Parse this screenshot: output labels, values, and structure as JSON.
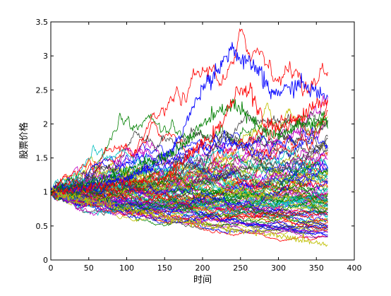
{
  "chart_data": {
    "type": "line",
    "title": "",
    "xlabel": "时间",
    "ylabel": "股票价格",
    "xlim": [
      0,
      400
    ],
    "ylim": [
      0,
      3.5
    ],
    "xticks": [
      0,
      50,
      100,
      150,
      200,
      250,
      300,
      350,
      400
    ],
    "yticks": [
      0,
      0.5,
      1,
      1.5,
      2,
      2.5,
      3,
      3.5
    ],
    "ytick_labels": [
      "0",
      "0.5",
      "1",
      "1.5",
      "2",
      "2.5",
      "3",
      "3.5"
    ],
    "grid": false,
    "legend": "none",
    "series_count": 100,
    "x": {
      "start": 0,
      "end": 365,
      "step": 1
    },
    "series_colors": [
      "#0000ff",
      "#008000",
      "#ff0000",
      "#00bfbf",
      "#bf00bf",
      "#bfbf00",
      "#404040"
    ],
    "highlighted_series": [
      {
        "color": "#0000ff",
        "points": [
          [
            0,
            1.0
          ],
          [
            30,
            1.05
          ],
          [
            60,
            1.1
          ],
          [
            100,
            1.2
          ],
          [
            130,
            1.35
          ],
          [
            160,
            1.6
          ],
          [
            180,
            2.05
          ],
          [
            200,
            2.55
          ],
          [
            220,
            2.8
          ],
          [
            240,
            3.15
          ],
          [
            250,
            2.9
          ],
          [
            270,
            2.85
          ],
          [
            290,
            2.45
          ],
          [
            310,
            2.5
          ],
          [
            330,
            2.6
          ],
          [
            350,
            2.45
          ],
          [
            365,
            2.4
          ]
        ]
      },
      {
        "color": "#008000",
        "points": [
          [
            0,
            1.0
          ],
          [
            40,
            1.1
          ],
          [
            80,
            1.25
          ],
          [
            120,
            1.4
          ],
          [
            150,
            1.5
          ],
          [
            180,
            1.75
          ],
          [
            200,
            2.0
          ],
          [
            220,
            2.15
          ],
          [
            240,
            2.3
          ],
          [
            260,
            2.1
          ],
          [
            280,
            1.9
          ],
          [
            300,
            1.8
          ],
          [
            320,
            1.95
          ],
          [
            340,
            2.0
          ],
          [
            365,
            2.05
          ]
        ]
      },
      {
        "color": "#ff0000",
        "points": [
          [
            0,
            1.0
          ],
          [
            50,
            1.05
          ],
          [
            100,
            1.15
          ],
          [
            150,
            1.2
          ],
          [
            180,
            1.5
          ],
          [
            220,
            1.9
          ],
          [
            250,
            2.55
          ],
          [
            265,
            2.45
          ],
          [
            280,
            2.0
          ],
          [
            300,
            1.95
          ],
          [
            330,
            2.1
          ],
          [
            350,
            2.3
          ],
          [
            365,
            2.35
          ]
        ]
      },
      {
        "color": "#bfbf00",
        "points": [
          [
            0,
            1.0
          ],
          [
            60,
            0.85
          ],
          [
            120,
            0.7
          ],
          [
            180,
            0.55
          ],
          [
            240,
            0.45
          ],
          [
            300,
            0.35
          ],
          [
            340,
            0.28
          ],
          [
            365,
            0.22
          ]
        ]
      }
    ]
  }
}
